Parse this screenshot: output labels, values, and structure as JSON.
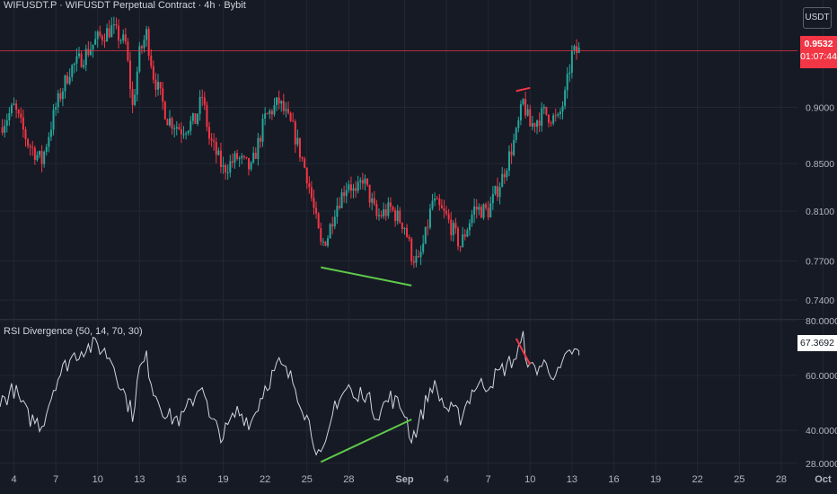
{
  "header": {
    "title": "WIFUSDT.P · WIFUSDT Perpetual Contract · 4h · Bybit",
    "currency_button": "USDT"
  },
  "current": {
    "price": "0.9532",
    "countdown": "01:07:44",
    "tag_color": "#f23645"
  },
  "rsi_panel": {
    "title": "RSI Divergence (50, 14, 70, 30)",
    "value_tag": "67.3692"
  },
  "colors": {
    "background": "#161a25",
    "up": "#26a69a",
    "down": "#f23645",
    "bullish_divergence": "#5fc94a",
    "bearish_divergence": "#f23645",
    "rsi_line": "#d1d4dc"
  },
  "chart_data": [
    {
      "type": "candlestick",
      "interval": "4h",
      "y_scale": "log",
      "ylim": [
        0.728,
        1.0
      ],
      "y_ticks": [
        "0.9000",
        "0.8500",
        "0.8100",
        "0.7700",
        "0.7400"
      ],
      "x_range": [
        "Aug 3",
        "Oct 2"
      ],
      "x_ticks": [
        "4",
        "7",
        "10",
        "13",
        "16",
        "19",
        "22",
        "25",
        "28",
        "Sep",
        "4",
        "7",
        "10",
        "13",
        "16",
        "19",
        "22",
        "25",
        "28",
        "Oct"
      ],
      "anchors": [
        [
          "Aug 3",
          0.882
        ],
        [
          "Aug 4",
          0.9
        ],
        [
          "Aug 5",
          0.868
        ],
        [
          "Aug 6",
          0.852
        ],
        [
          "Aug 7",
          0.9
        ],
        [
          "Aug 8",
          0.935
        ],
        [
          "Aug 9",
          0.948
        ],
        [
          "Aug 10",
          0.965
        ],
        [
          "Aug 11",
          0.975
        ],
        [
          "Aug 12",
          0.96
        ],
        [
          "Aug 12 12:00",
          0.9
        ],
        [
          "Aug 13",
          0.95
        ],
        [
          "Aug 13 12:00",
          0.97
        ],
        [
          "Aug 14",
          0.93
        ],
        [
          "Aug 15",
          0.89
        ],
        [
          "Aug 16",
          0.88
        ],
        [
          "Aug 17",
          0.888
        ],
        [
          "Aug 17 12:00",
          0.91
        ],
        [
          "Aug 18",
          0.872
        ],
        [
          "Aug 19",
          0.845
        ],
        [
          "Aug 20",
          0.855
        ],
        [
          "Aug 21",
          0.845
        ],
        [
          "Aug 22",
          0.89
        ],
        [
          "Aug 23",
          0.905
        ],
        [
          "Aug 24",
          0.88
        ],
        [
          "Aug 25",
          0.84
        ],
        [
          "Aug 26",
          0.782
        ],
        [
          "Aug 26 12:00",
          0.79
        ],
        [
          "Aug 27",
          0.812
        ],
        [
          "Aug 28",
          0.835
        ],
        [
          "Aug 28 12:00",
          0.822
        ],
        [
          "Aug 29",
          0.838
        ],
        [
          "Aug 30",
          0.805
        ],
        [
          "Aug 31",
          0.812
        ],
        [
          "Sep 1",
          0.798
        ],
        [
          "Sep 1 12:00",
          0.775
        ],
        [
          "Sep 2",
          0.768
        ],
        [
          "Sep 2 12:00",
          0.79
        ],
        [
          "Sep 3",
          0.818
        ],
        [
          "Sep 4",
          0.805
        ],
        [
          "Sep 5",
          0.782
        ],
        [
          "Sep 6",
          0.812
        ],
        [
          "Sep 7",
          0.81
        ],
        [
          "Sep 8",
          0.838
        ],
        [
          "Sep 9",
          0.875
        ],
        [
          "Sep 9 12:00",
          0.905
        ],
        [
          "Sep 10",
          0.883
        ],
        [
          "Sep 11",
          0.895
        ],
        [
          "Sep 12",
          0.888
        ],
        [
          "Sep 12 12:00",
          0.91
        ],
        [
          "Sep 13",
          0.95
        ],
        [
          "Sep 13 12:00",
          0.953
        ]
      ],
      "current_price": 0.9532,
      "divergence_lines": [
        {
          "kind": "bullish",
          "from": [
            "Aug 26",
            0.765
          ],
          "to": [
            "Sep 1 12:00",
            0.751
          ]
        },
        {
          "kind": "bearish",
          "from": [
            "Sep 9",
            0.915
          ],
          "to": [
            "Sep 10",
            0.918
          ]
        }
      ]
    },
    {
      "type": "line",
      "title": "RSI Divergence (50, 14, 70, 30)",
      "ylim": [
        26,
        80
      ],
      "y_ticks": [
        "80.0000",
        "60.0000",
        "40.0000",
        "28.0000"
      ],
      "anchors": [
        [
          "Aug 3",
          50
        ],
        [
          "Aug 4",
          55
        ],
        [
          "Aug 5",
          45
        ],
        [
          "Aug 6",
          42
        ],
        [
          "Aug 7",
          58
        ],
        [
          "Aug 8",
          66
        ],
        [
          "Aug 9",
          70
        ],
        [
          "Aug 10",
          71
        ],
        [
          "Aug 11",
          66
        ],
        [
          "Aug 12",
          52
        ],
        [
          "Aug 12 12:00",
          46
        ],
        [
          "Aug 13",
          62
        ],
        [
          "Aug 13 12:00",
          66
        ],
        [
          "Aug 14",
          55
        ],
        [
          "Aug 15",
          45
        ],
        [
          "Aug 16",
          44
        ],
        [
          "Aug 17",
          53
        ],
        [
          "Aug 17 12:00",
          58
        ],
        [
          "Aug 18",
          44
        ],
        [
          "Aug 19",
          38
        ],
        [
          "Aug 20",
          47
        ],
        [
          "Aug 21",
          43
        ],
        [
          "Aug 22",
          56
        ],
        [
          "Aug 23",
          64
        ],
        [
          "Aug 24",
          58
        ],
        [
          "Aug 25",
          45
        ],
        [
          "Aug 26",
          29
        ],
        [
          "Aug 26 12:00",
          36
        ],
        [
          "Aug 27",
          50
        ],
        [
          "Aug 28",
          56
        ],
        [
          "Aug 28 12:00",
          50
        ],
        [
          "Aug 29",
          55
        ],
        [
          "Aug 30",
          46
        ],
        [
          "Aug 31",
          52
        ],
        [
          "Sep 1",
          47
        ],
        [
          "Sep 1 12:00",
          37
        ],
        [
          "Sep 2",
          42
        ],
        [
          "Sep 2 12:00",
          50
        ],
        [
          "Sep 3",
          57
        ],
        [
          "Sep 4",
          48
        ],
        [
          "Sep 5",
          45
        ],
        [
          "Sep 6",
          56
        ],
        [
          "Sep 7",
          57
        ],
        [
          "Sep 8",
          62
        ],
        [
          "Sep 9",
          67
        ],
        [
          "Sep 9 12:00",
          73
        ],
        [
          "Sep 10",
          62
        ],
        [
          "Sep 11",
          64
        ],
        [
          "Sep 12",
          60
        ],
        [
          "Sep 12 12:00",
          65
        ],
        [
          "Sep 13",
          69
        ],
        [
          "Sep 13 12:00",
          67.3692
        ]
      ],
      "divergence_lines": [
        {
          "kind": "bullish",
          "from": [
            "Aug 26",
            28.5
          ],
          "to": [
            "Sep 1 12:00",
            44
          ]
        },
        {
          "kind": "bearish",
          "from": [
            "Sep 9",
            73.5
          ],
          "to": [
            "Sep 10",
            64
          ]
        }
      ]
    }
  ]
}
